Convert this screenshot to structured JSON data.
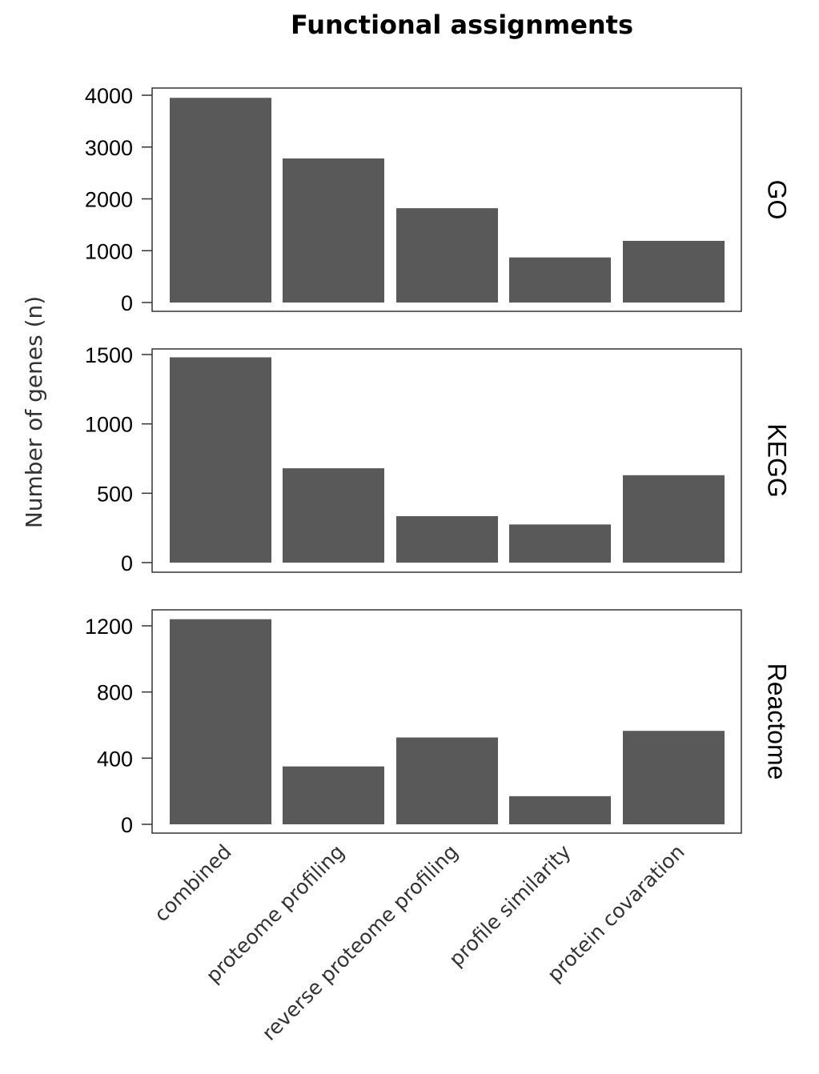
{
  "chart_data": {
    "type": "bar",
    "title": "Functional assignments",
    "ylabel": "Number of genes (n)",
    "categories": [
      "combined",
      "proteome profiling",
      "reverse proteome profiling",
      "profile similarity",
      "protein covaration"
    ],
    "bar_color": "#595959",
    "panels": [
      {
        "name": "GO",
        "ylim": [
          0,
          4000
        ],
        "yticks": [
          0,
          1000,
          2000,
          3000,
          4000
        ],
        "values": [
          3950,
          2780,
          1820,
          870,
          1190
        ]
      },
      {
        "name": "KEGG",
        "ylim": [
          0,
          1500
        ],
        "yticks": [
          0,
          500,
          1000,
          1500
        ],
        "values": [
          1480,
          680,
          335,
          275,
          630
        ]
      },
      {
        "name": "Reactome",
        "ylim": [
          0,
          1200
        ],
        "yticks": [
          0,
          400,
          800,
          1200
        ],
        "values": [
          1240,
          350,
          525,
          170,
          565
        ]
      }
    ]
  }
}
